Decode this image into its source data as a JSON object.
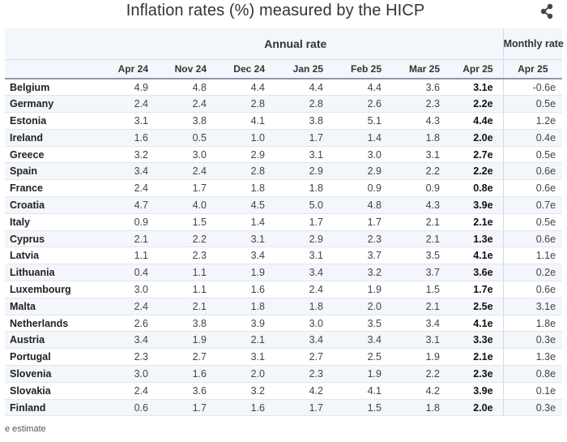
{
  "title": "Inflation rates (%) measured by the HICP",
  "share_icon": "share-icon",
  "chart_data": {
    "type": "table",
    "group_headers": {
      "annual": "Annual rate",
      "monthly": "Monthly rate"
    },
    "columns": [
      "Apr 24",
      "Nov 24",
      "Dec 24",
      "Jan 25",
      "Feb 25",
      "Mar 25",
      "Apr 25",
      "Apr 25"
    ],
    "rows": [
      {
        "country": "Belgium",
        "values": [
          "4.9",
          "4.8",
          "4.4",
          "4.4",
          "4.4",
          "3.6",
          "3.1e",
          "-0.6e"
        ]
      },
      {
        "country": "Germany",
        "values": [
          "2.4",
          "2.4",
          "2.8",
          "2.8",
          "2.6",
          "2.3",
          "2.2e",
          "0.5e"
        ]
      },
      {
        "country": "Estonia",
        "values": [
          "3.1",
          "3.8",
          "4.1",
          "3.8",
          "5.1",
          "4.3",
          "4.4e",
          "1.2e"
        ]
      },
      {
        "country": "Ireland",
        "values": [
          "1.6",
          "0.5",
          "1.0",
          "1.7",
          "1.4",
          "1.8",
          "2.0e",
          "0.4e"
        ]
      },
      {
        "country": "Greece",
        "values": [
          "3.2",
          "3.0",
          "2.9",
          "3.1",
          "3.0",
          "3.1",
          "2.7e",
          "0.5e"
        ]
      },
      {
        "country": "Spain",
        "values": [
          "3.4",
          "2.4",
          "2.8",
          "2.9",
          "2.9",
          "2.2",
          "2.2e",
          "0.6e"
        ]
      },
      {
        "country": "France",
        "values": [
          "2.4",
          "1.7",
          "1.8",
          "1.8",
          "0.9",
          "0.9",
          "0.8e",
          "0.6e"
        ]
      },
      {
        "country": "Croatia",
        "values": [
          "4.7",
          "4.0",
          "4.5",
          "5.0",
          "4.8",
          "4.3",
          "3.9e",
          "0.7e"
        ]
      },
      {
        "country": "Italy",
        "values": [
          "0.9",
          "1.5",
          "1.4",
          "1.7",
          "1.7",
          "2.1",
          "2.1e",
          "0.5e"
        ]
      },
      {
        "country": "Cyprus",
        "values": [
          "2.1",
          "2.2",
          "3.1",
          "2.9",
          "2.3",
          "2.1",
          "1.3e",
          "0.6e"
        ]
      },
      {
        "country": "Latvia",
        "values": [
          "1.1",
          "2.3",
          "3.4",
          "3.1",
          "3.7",
          "3.5",
          "4.1e",
          "1.1e"
        ]
      },
      {
        "country": "Lithuania",
        "values": [
          "0.4",
          "1.1",
          "1.9",
          "3.4",
          "3.2",
          "3.7",
          "3.6e",
          "0.2e"
        ]
      },
      {
        "country": "Luxembourg",
        "values": [
          "3.0",
          "1.1",
          "1.6",
          "2.4",
          "1.9",
          "1.5",
          "1.7e",
          "0.6e"
        ]
      },
      {
        "country": "Malta",
        "values": [
          "2.4",
          "2.1",
          "1.8",
          "1.8",
          "2.0",
          "2.1",
          "2.5e",
          "3.1e"
        ]
      },
      {
        "country": "Netherlands",
        "values": [
          "2.6",
          "3.8",
          "3.9",
          "3.0",
          "3.5",
          "3.4",
          "4.1e",
          "1.8e"
        ]
      },
      {
        "country": "Austria",
        "values": [
          "3.4",
          "1.9",
          "2.1",
          "3.4",
          "3.4",
          "3.1",
          "3.3e",
          "0.3e"
        ]
      },
      {
        "country": "Portugal",
        "values": [
          "2.3",
          "2.7",
          "3.1",
          "2.7",
          "2.5",
          "1.9",
          "2.1e",
          "1.3e"
        ]
      },
      {
        "country": "Slovenia",
        "values": [
          "3.0",
          "1.6",
          "2.0",
          "2.3",
          "1.9",
          "2.2",
          "2.3e",
          "0.8e"
        ]
      },
      {
        "country": "Slovakia",
        "values": [
          "2.4",
          "3.6",
          "3.2",
          "4.2",
          "4.1",
          "4.2",
          "3.9e",
          "0.1e"
        ]
      },
      {
        "country": "Finland",
        "values": [
          "0.6",
          "1.7",
          "1.6",
          "1.7",
          "1.5",
          "1.8",
          "2.0e",
          "0.3e"
        ]
      }
    ],
    "footnote": "e estimate"
  }
}
